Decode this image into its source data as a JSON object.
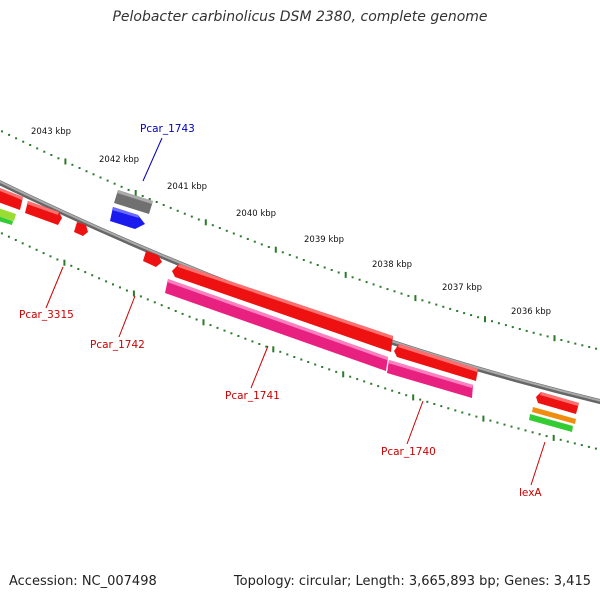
{
  "title": "Pelobacter carbinolicus DSM 2380, complete genome",
  "accession": "Accession: NC_007498",
  "topology": "Topology: circular; Length: 3,665,893 bp; Genes: 3,415",
  "colors": {
    "backbone": "#888888",
    "tick": "#2a7a2a",
    "gene_red": "#ee1111",
    "gene_pink": "#e8207f",
    "gene_grey": "#707070",
    "gene_blue": "#1a1aee",
    "gene_orange": "#f08c10",
    "gene_green": "#33cc33",
    "gene_lightgreen": "#99dd33",
    "label_red": "#cc0000",
    "label_blue": "#0000bb"
  },
  "axis_labels": [
    "2043 kbp",
    "2042 kbp",
    "2041 kbp",
    "2040 kbp",
    "2039 kbp",
    "2038 kbp",
    "2037 kbp",
    "2036 kbp"
  ],
  "gene_labels": {
    "pcar_1743": "Pcar_1743",
    "pcar_3315": "Pcar_3315",
    "pcar_1742": "Pcar_1742",
    "pcar_1741": "Pcar_1741",
    "pcar_1740": "Pcar_1740",
    "lexa": "lexA"
  }
}
